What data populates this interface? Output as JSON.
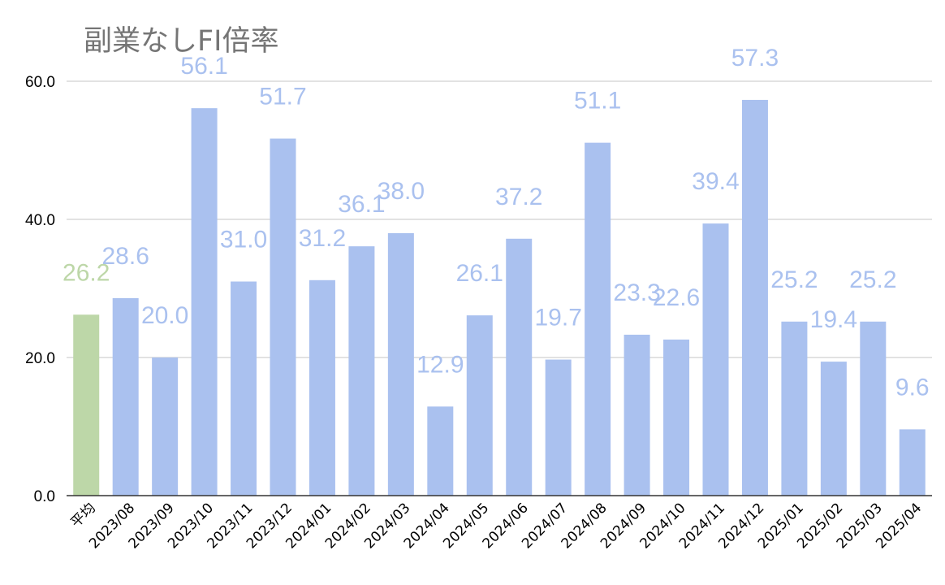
{
  "chart_data": {
    "type": "bar",
    "title": "副業なしFI倍率",
    "xlabel": "",
    "ylabel": "",
    "ylim": [
      0,
      60
    ],
    "yticks": [
      "0.0",
      "20.0",
      "40.0",
      "60.0"
    ],
    "grid": true,
    "legend": "none",
    "categories": [
      "平均",
      "2023/08",
      "2023/09",
      "2023/10",
      "2023/11",
      "2023/12",
      "2024/01",
      "2024/02",
      "2024/03",
      "2024/04",
      "2024/05",
      "2024/06",
      "2024/07",
      "2024/08",
      "2024/09",
      "2024/10",
      "2024/11",
      "2024/12",
      "2025/01",
      "2025/02",
      "2025/03",
      "2025/04"
    ],
    "values": [
      26.2,
      28.6,
      20.0,
      56.1,
      31.0,
      51.7,
      31.2,
      36.1,
      38.0,
      12.9,
      26.1,
      37.2,
      19.7,
      51.1,
      23.3,
      22.6,
      39.4,
      57.3,
      25.2,
      19.4,
      25.2,
      9.6
    ],
    "data_labels": [
      "26.2",
      "28.6",
      "20.0",
      "56.1",
      "31.0",
      "51.7",
      "31.2",
      "36.1",
      "38.0",
      "12.9",
      "26.1",
      "37.2",
      "19.7",
      "51.1",
      "23.3",
      "22.6",
      "39.4",
      "57.3",
      "25.2",
      "19.4",
      "25.2",
      "9.6"
    ],
    "colors": {
      "highlight": "#bdd7a8",
      "bar": "#aac1ef",
      "highlight_label": "#bdd7a8",
      "bar_label": "#aac1ef",
      "grid": "#c4c4c4",
      "axis": "#333333"
    }
  }
}
